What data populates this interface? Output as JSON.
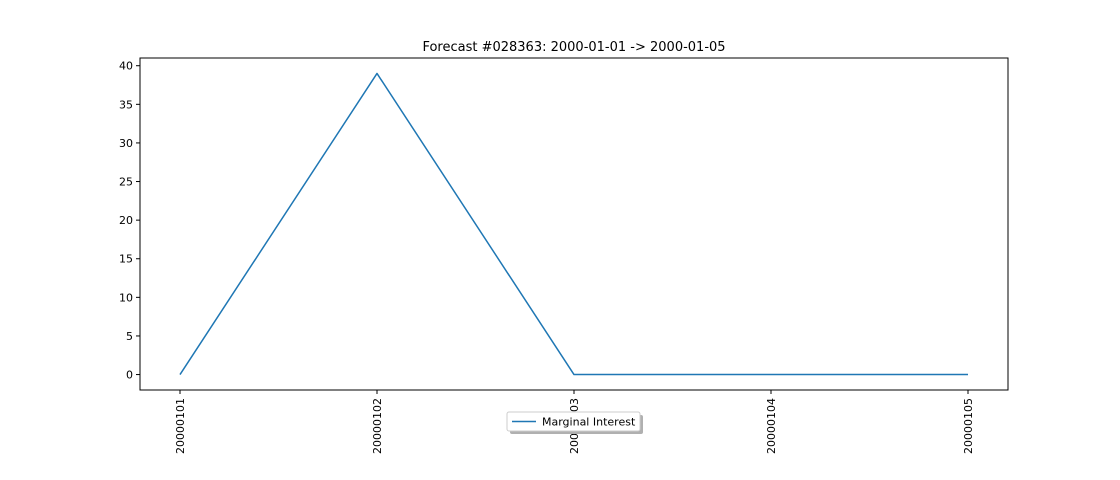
{
  "chart_data": {
    "type": "line",
    "title": "Forecast #028363: 2000-01-01 -> 2000-01-05",
    "xlabel": "",
    "ylabel": "",
    "categories": [
      "20000101",
      "20000102",
      "20000103",
      "20000104",
      "20000105"
    ],
    "series": [
      {
        "name": "Marginal Interest",
        "values": [
          0,
          39,
          0,
          0,
          0
        ],
        "color": "#1f77b4"
      }
    ],
    "yticks": [
      "0",
      "5",
      "10",
      "15",
      "20",
      "25",
      "30",
      "35",
      "40"
    ],
    "ylim": [
      -2,
      41
    ],
    "grid": false,
    "legend": "bottom-center"
  }
}
